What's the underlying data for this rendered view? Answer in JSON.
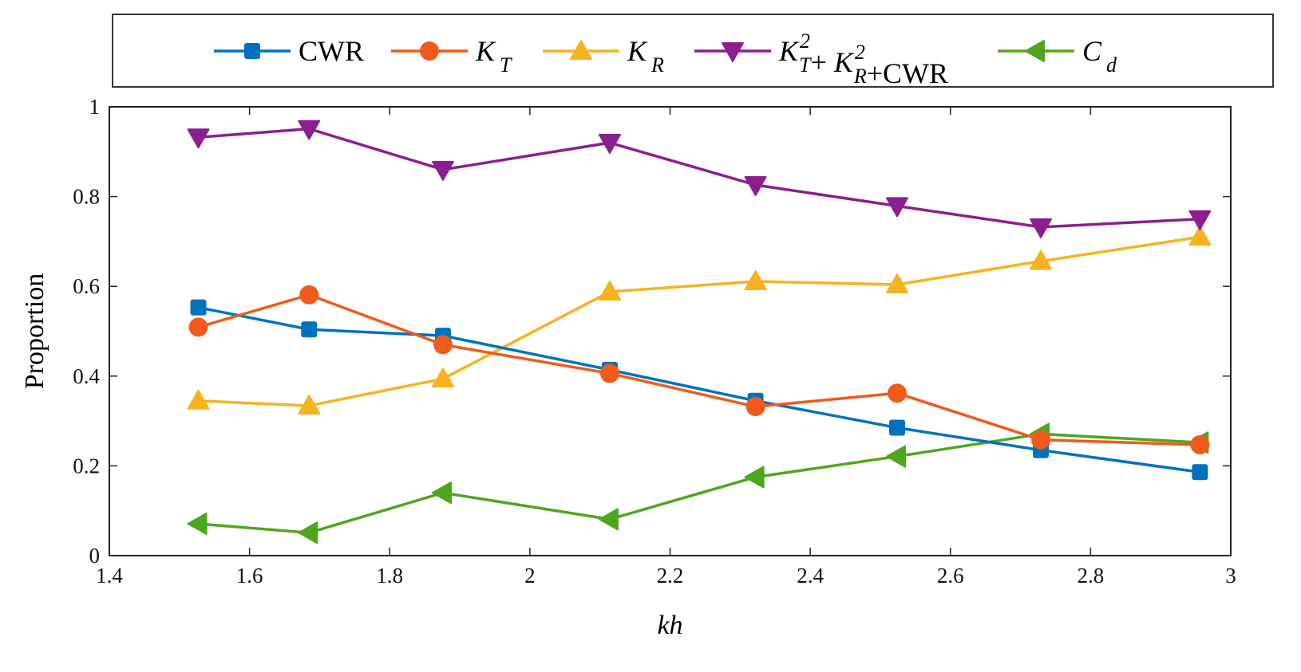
{
  "chart_data": {
    "type": "line",
    "title": "",
    "xlabel": "kh",
    "ylabel": "Proportion",
    "xlim": [
      1.4,
      3.0
    ],
    "ylim": [
      0,
      1
    ],
    "xticks": [
      1.4,
      1.6,
      1.8,
      2.0,
      2.2,
      2.4,
      2.6,
      2.8,
      3.0
    ],
    "xtick_labels": [
      "1.4",
      "1.6",
      "1.8",
      "2",
      "2.2",
      "2.4",
      "2.6",
      "2.8",
      "3"
    ],
    "yticks": [
      0,
      0.2,
      0.4,
      0.6,
      0.8,
      1.0
    ],
    "ytick_labels": [
      "0",
      "0.2",
      "0.4",
      "0.6",
      "0.8",
      "1"
    ],
    "grid": false,
    "legend_placement": "top, outside, horizontal",
    "x": [
      1.527,
      1.685,
      1.876,
      2.114,
      2.322,
      2.524,
      2.729,
      2.956
    ],
    "series": [
      {
        "name": "CWR",
        "legend_parts": [
          {
            "text": "CWR"
          }
        ],
        "color": "#0072BD",
        "marker": "square",
        "values": [
          0.553,
          0.504,
          0.49,
          0.414,
          0.345,
          0.285,
          0.235,
          0.186
        ]
      },
      {
        "name": "K_T",
        "legend_parts": [
          {
            "text": "K",
            "italic": true
          },
          {
            "text": "T",
            "italic": true,
            "sub": true
          }
        ],
        "color": "#F05A1A",
        "marker": "circle",
        "values": [
          0.509,
          0.581,
          0.47,
          0.406,
          0.332,
          0.362,
          0.258,
          0.247
        ]
      },
      {
        "name": "K_R",
        "legend_parts": [
          {
            "text": "K",
            "italic": true
          },
          {
            "text": "R",
            "italic": true,
            "sub": true
          }
        ],
        "color": "#F7B21E",
        "marker": "triangle-up",
        "values": [
          0.345,
          0.334,
          0.394,
          0.588,
          0.611,
          0.604,
          0.656,
          0.71
        ]
      },
      {
        "name": "K_T^2+ K_R^2+CWR",
        "legend_parts": [
          {
            "text": "K",
            "italic": true
          },
          {
            "text": "2",
            "italic": true,
            "sup": true
          },
          {
            "text": "T",
            "italic": true,
            "sub": true
          },
          {
            "text": "+ "
          },
          {
            "text": "K",
            "italic": true
          },
          {
            "text": "2",
            "italic": true,
            "sup": true
          },
          {
            "text": "R",
            "italic": true,
            "sub": true
          },
          {
            "text": "+CWR"
          }
        ],
        "color": "#8B1F8F",
        "marker": "triangle-down",
        "values": [
          0.932,
          0.951,
          0.86,
          0.92,
          0.826,
          0.779,
          0.732,
          0.75
        ]
      },
      {
        "name": "C_d",
        "legend_parts": [
          {
            "text": "C",
            "italic": true
          },
          {
            "text": "d",
            "italic": true,
            "sub": true
          }
        ],
        "color": "#4EA61E",
        "marker": "triangle-left",
        "values": [
          0.071,
          0.051,
          0.14,
          0.081,
          0.175,
          0.221,
          0.271,
          0.252
        ]
      }
    ]
  }
}
